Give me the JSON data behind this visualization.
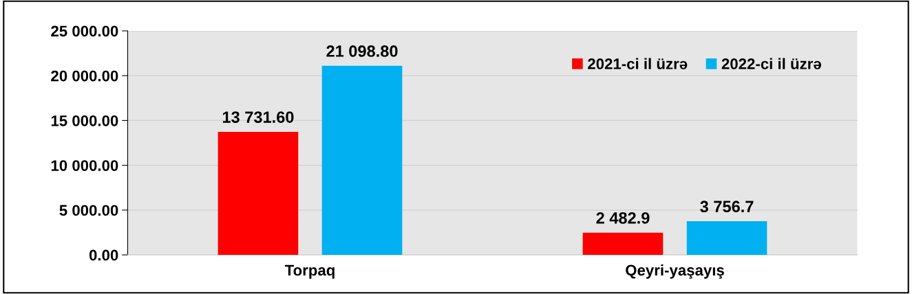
{
  "chart_data": {
    "type": "bar",
    "categories": [
      "Torpaq",
      "Qeyri-yaşayış"
    ],
    "series": [
      {
        "name": "2021-ci il üzrə",
        "color": "#ff0000",
        "values": [
          13731.6,
          2482.9
        ],
        "value_labels": [
          "13 731.60",
          "2 482.9"
        ]
      },
      {
        "name": "2022-ci il üzrə",
        "color": "#00b0f0",
        "values": [
          21098.8,
          3756.7
        ],
        "value_labels": [
          "21 098.80",
          "3 756.7"
        ]
      }
    ],
    "ylim": [
      0,
      25000
    ],
    "yticks": [
      {
        "value": 0,
        "label": "0.00"
      },
      {
        "value": 5000,
        "label": "5 000.00"
      },
      {
        "value": 10000,
        "label": "10 000.00"
      },
      {
        "value": 15000,
        "label": "15 000.00"
      },
      {
        "value": 20000,
        "label": "20 000.00"
      },
      {
        "value": 25000,
        "label": "25 000.00"
      }
    ],
    "grid": "y",
    "legend": "top right"
  }
}
